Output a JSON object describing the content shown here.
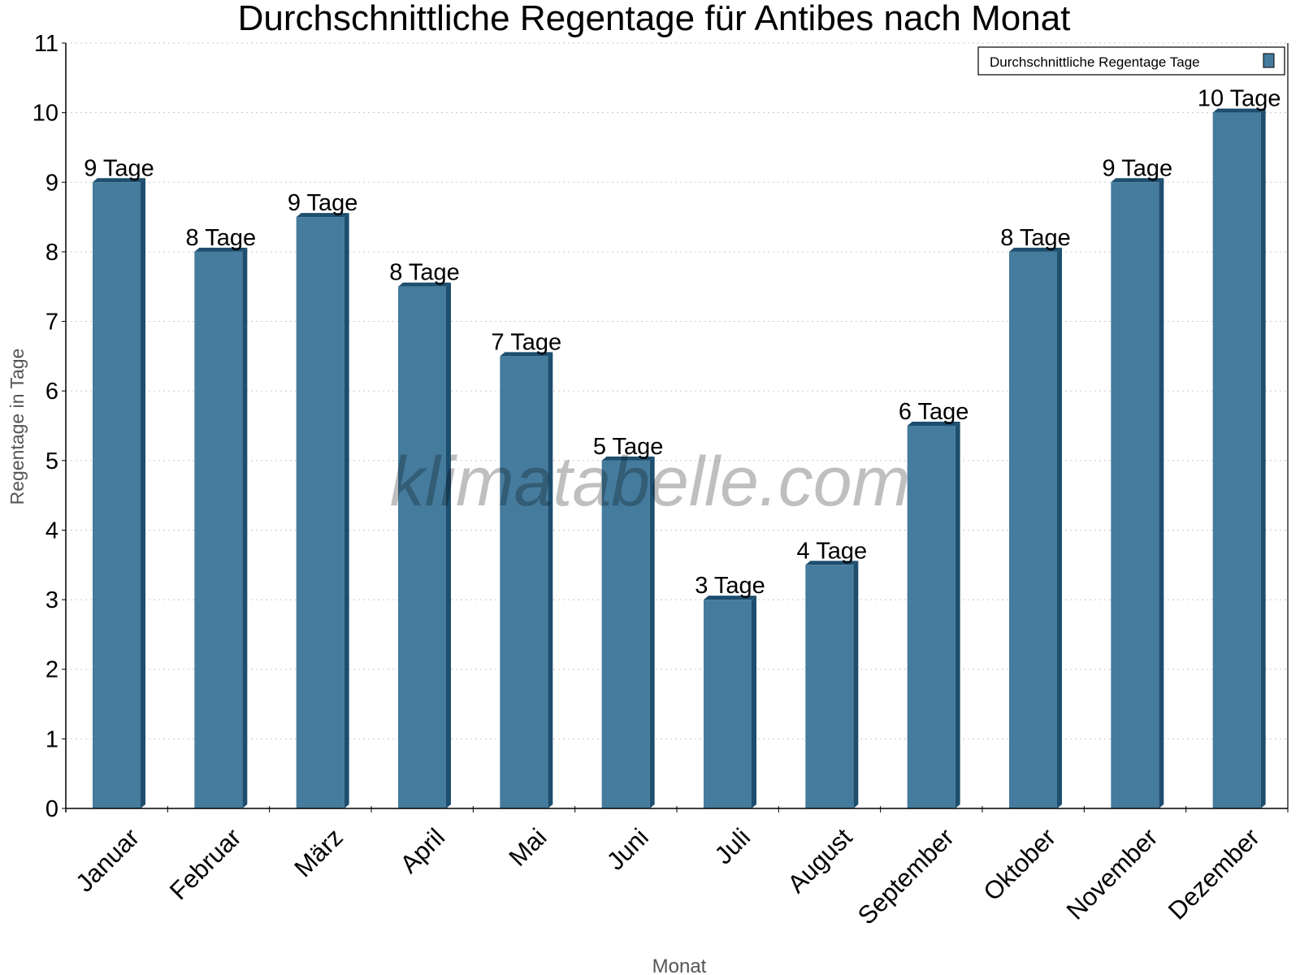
{
  "chart_data": {
    "type": "bar",
    "title": "Durchschnittliche Regentage für Antibes nach Monat",
    "xlabel": "Monat",
    "ylabel": "Regentage in Tage",
    "categories": [
      "Januar",
      "Februar",
      "März",
      "April",
      "Mai",
      "Juni",
      "Juli",
      "August",
      "September",
      "Oktober",
      "November",
      "Dezember"
    ],
    "series": [
      {
        "name": "Durchschnittliche Regentage Tage",
        "values": [
          9,
          8,
          8.5,
          7.5,
          6.5,
          5,
          3,
          3.5,
          5.5,
          8,
          9,
          10
        ],
        "data_labels": [
          "9 Tage",
          "8 Tage",
          "9 Tage",
          "8 Tage",
          "7 Tage",
          "5 Tage",
          "3 Tage",
          "4 Tage",
          "6 Tage",
          "8 Tage",
          "9 Tage",
          "10 Tage"
        ]
      }
    ],
    "ylim": [
      0,
      11
    ],
    "yticks": [
      "0",
      "1",
      "2",
      "3",
      "4",
      "5",
      "6",
      "7",
      "8",
      "9",
      "10",
      "11"
    ],
    "grid": "horizontal dotted",
    "legend": "top-right",
    "colors": {
      "bar": "#457b9d",
      "bar_side": "#1d4e6e",
      "grid": "#c8c8c8"
    },
    "watermark": "klimatabelle.com"
  }
}
